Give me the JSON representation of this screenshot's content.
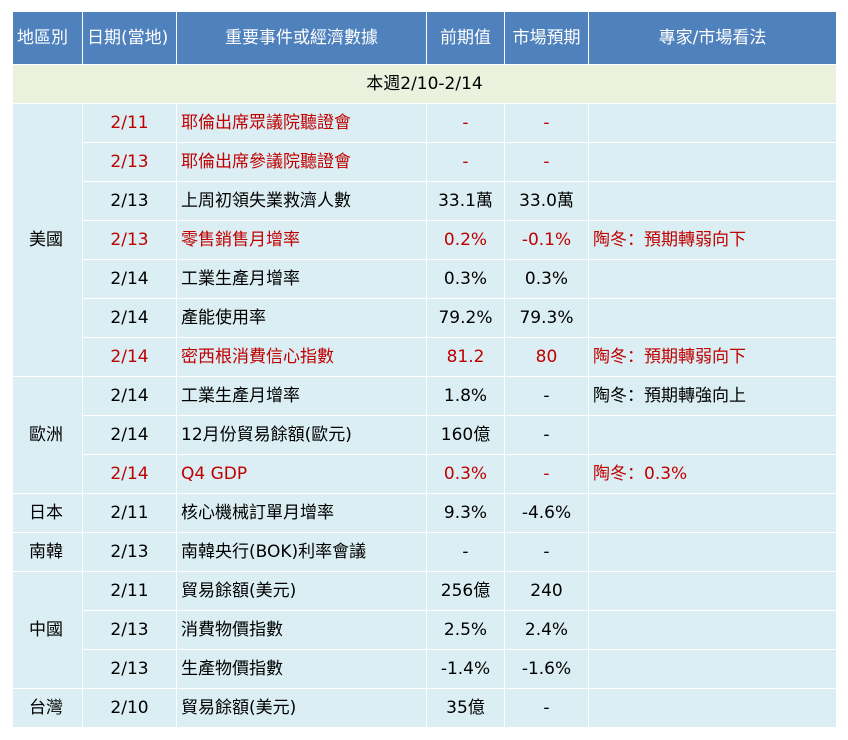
{
  "headers": {
    "region": "地區別",
    "date": "日期(當地)",
    "event": "重要事件或經濟數據",
    "previous": "前期值",
    "forecast": "市場預期",
    "comment": "專家/市場看法"
  },
  "week_label": "本週2/10-2/14",
  "colors": {
    "header_bg": "#4f81bd",
    "week_bg": "#eaf1dd",
    "row_bg": "#daeef3",
    "highlight_text": "#c00000"
  },
  "rows": [
    {
      "region": "美國",
      "date": "2/11",
      "event": "耶倫出席眾議院聽證會",
      "previous": "-",
      "forecast": "-",
      "comment": "",
      "highlight": true
    },
    {
      "region": "",
      "date": "2/13",
      "event": "耶倫出席參議院聽證會",
      "previous": "-",
      "forecast": "-",
      "comment": "",
      "highlight": true
    },
    {
      "region": "",
      "date": "2/13",
      "event": "上周初領失業救濟人數",
      "previous": "33.1萬",
      "forecast": "33.0萬",
      "comment": "",
      "highlight": false
    },
    {
      "region": "",
      "date": "2/13",
      "event": "零售銷售月增率",
      "previous": "0.2%",
      "forecast": "-0.1%",
      "comment": "陶冬：預期轉弱向下",
      "highlight": true
    },
    {
      "region": "",
      "date": "2/14",
      "event": "工業生產月增率",
      "previous": "0.3%",
      "forecast": "0.3%",
      "comment": "",
      "highlight": false
    },
    {
      "region": "",
      "date": "2/14",
      "event": "產能使用率",
      "previous": "79.2%",
      "forecast": "79.3%",
      "comment": "",
      "highlight": false
    },
    {
      "region": "",
      "date": "2/14",
      "event": "密西根消費信心指數",
      "previous": "81.2",
      "forecast": "80",
      "comment": "陶冬：預期轉弱向下",
      "highlight": true
    },
    {
      "region": "歐洲",
      "date": "2/14",
      "event": "工業生產月增率",
      "previous": "1.8%",
      "forecast": "-",
      "comment": "陶冬：預期轉強向上",
      "highlight": false
    },
    {
      "region": "",
      "date": "2/14",
      "event": "12月份貿易餘額(歐元)",
      "previous": "160億",
      "forecast": "-",
      "comment": "",
      "highlight": false
    },
    {
      "region": "",
      "date": "2/14",
      "event": "Q4 GDP",
      "previous": "0.3%",
      "forecast": "-",
      "comment": "陶冬：0.3%",
      "highlight": true
    },
    {
      "region": "日本",
      "date": "2/11",
      "event": "核心機械訂單月增率",
      "previous": "9.3%",
      "forecast": "-4.6%",
      "comment": "",
      "highlight": false
    },
    {
      "region": "南韓",
      "date": "2/13",
      "event": "南韓央行(BOK)利率會議",
      "previous": "-",
      "forecast": "-",
      "comment": "",
      "highlight": false
    },
    {
      "region": "中國",
      "date": "2/11",
      "event": "貿易餘額(美元)",
      "previous": "256億",
      "forecast": "240",
      "comment": "",
      "highlight": false
    },
    {
      "region": "",
      "date": "2/13",
      "event": "消費物價指數",
      "previous": "2.5%",
      "forecast": "2.4%",
      "comment": "",
      "highlight": false
    },
    {
      "region": "",
      "date": "2/13",
      "event": "生產物價指數",
      "previous": "-1.4%",
      "forecast": "-1.6%",
      "comment": "",
      "highlight": false
    },
    {
      "region": "台灣",
      "date": "2/10",
      "event": "貿易餘額(美元)",
      "previous": "35億",
      "forecast": "-",
      "comment": "",
      "highlight": false
    }
  ]
}
